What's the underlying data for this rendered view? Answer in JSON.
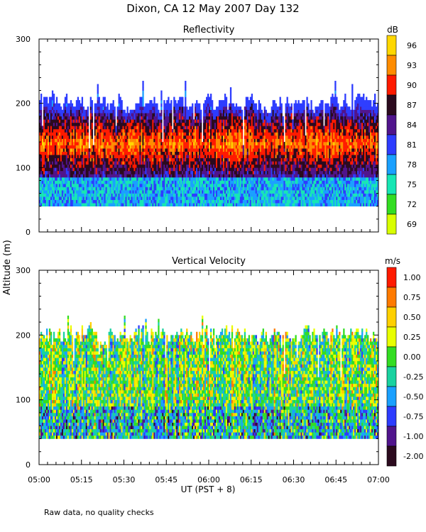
{
  "page": {
    "title": "Dixon, CA 12 May 2007  Day 132",
    "shared_ylabel": "Altitude (m)",
    "footnote": "Raw data, no quality checks"
  },
  "chart_data": [
    {
      "type": "heatmap",
      "title": "Reflectivity",
      "units": "dB",
      "ylim": [
        0,
        300
      ],
      "yticks": [
        "0",
        "100",
        "200",
        "300"
      ],
      "xlim": [
        "05:00",
        "07:00"
      ],
      "data_altitude_range": [
        40,
        235
      ],
      "colorbar_labels": [
        "96",
        "93",
        "90",
        "87",
        "84",
        "81",
        "78",
        "75",
        "72",
        "69"
      ],
      "colorbar_colors": [
        "#ffd700",
        "#ff8c00",
        "#ff1a00",
        "#2b0a1e",
        "#50148c",
        "#2d3cff",
        "#1aa0ff",
        "#17e6b4",
        "#33dd22",
        "#d8ff00"
      ],
      "pattern_note": "High reflectivity (red/orange) core near 100-180 m; blue/cyan below 90 m"
    },
    {
      "type": "heatmap",
      "title": "Vertical Velocity",
      "units": "m/s",
      "ylim": [
        0,
        300
      ],
      "yticks": [
        "0",
        "100",
        "200",
        "300"
      ],
      "xlim": [
        "05:00",
        "07:00"
      ],
      "data_altitude_range": [
        40,
        240
      ],
      "colorbar_labels": [
        "1.00",
        "0.75",
        "0.50",
        "0.25",
        "0.00",
        "-0.25",
        "-0.50",
        "-0.75",
        "-1.00",
        "-2.00"
      ],
      "colorbar_colors": [
        "#ff1a00",
        "#ff7a00",
        "#ffd000",
        "#e8ff00",
        "#33dd22",
        "#19d2a0",
        "#1aa0ff",
        "#2d3cff",
        "#50148c",
        "#2b0a1e"
      ],
      "pattern_note": "Mixed updrafts/downdrafts; dark downdrafts frequent below 100 m"
    }
  ],
  "x_axis": {
    "label": "UT  (PST + 8)",
    "ticks": [
      "05:00",
      "05:15",
      "05:30",
      "05:45",
      "06:00",
      "06:15",
      "06:30",
      "06:45",
      "07:00"
    ]
  }
}
